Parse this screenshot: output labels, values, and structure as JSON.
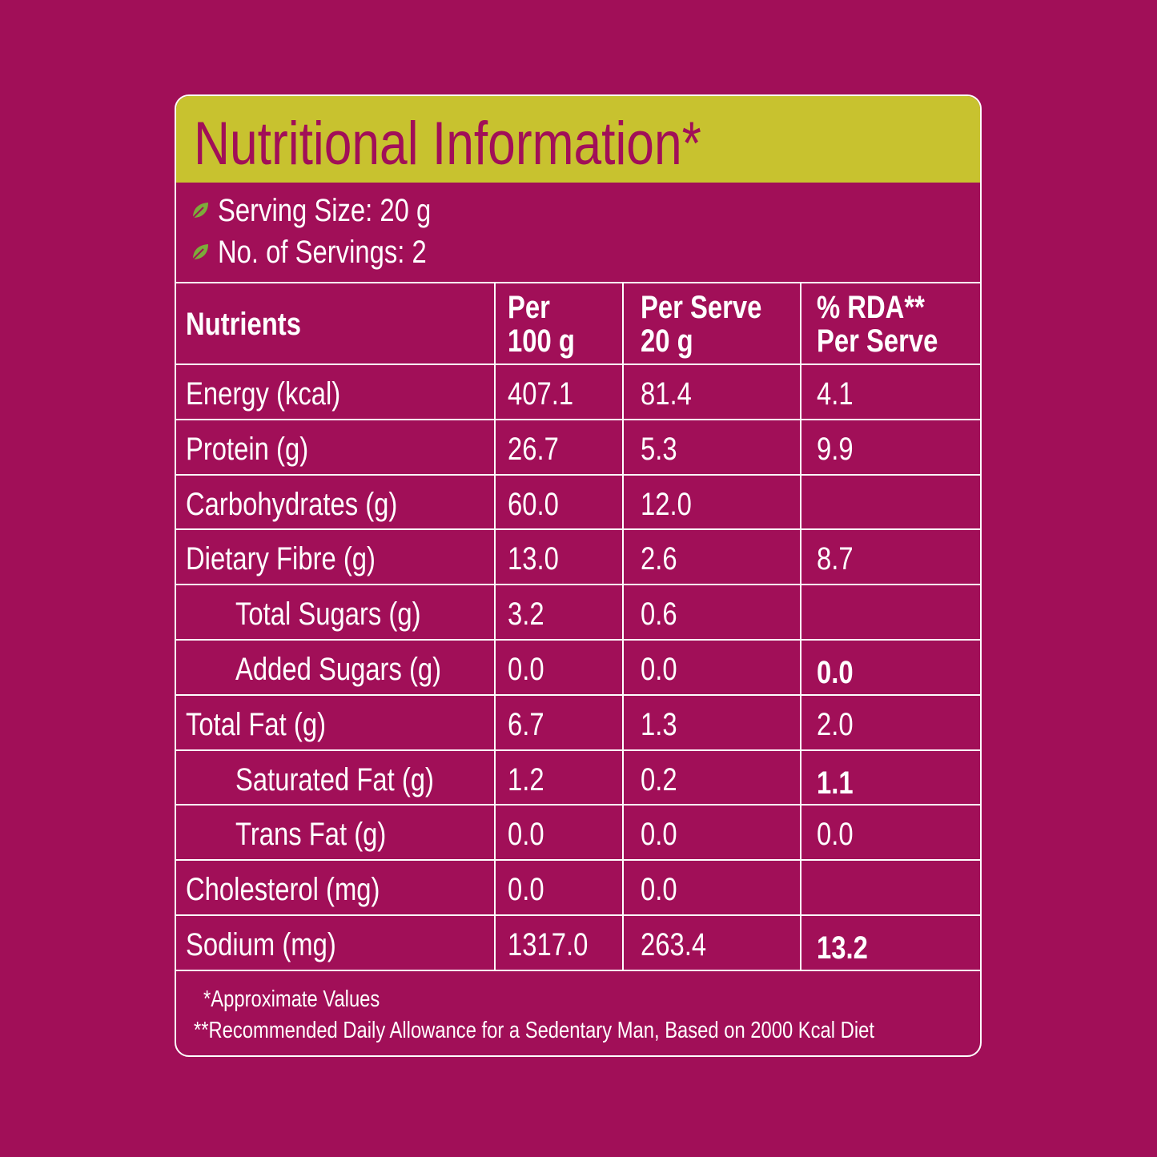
{
  "title": "Nutritional Information*",
  "serving": [
    "Serving Size: 20 g",
    "No. of Servings: 2"
  ],
  "table": {
    "header": [
      [
        "Nutrients"
      ],
      [
        "Per",
        "100 g"
      ],
      [
        "Per Serve",
        "20 g"
      ],
      [
        "% RDA**",
        "Per Serve"
      ]
    ],
    "rows": [
      {
        "cells": [
          "Energy (kcal)",
          "407.1",
          "81.4",
          "4.1"
        ],
        "indent": false,
        "bold": false
      },
      {
        "cells": [
          "Protein (g)",
          "26.7",
          "5.3",
          "9.9"
        ],
        "indent": false,
        "bold": false
      },
      {
        "cells": [
          "Carbohydrates (g)",
          "60.0",
          "12.0",
          null
        ],
        "indent": false,
        "bold": false
      },
      {
        "cells": [
          "Dietary Fibre (g)",
          "13.0",
          "2.6",
          "8.7"
        ],
        "indent": false,
        "bold": false
      },
      {
        "cells": [
          "Total Sugars (g)",
          "3.2",
          "0.6",
          null
        ],
        "indent": true,
        "bold": false
      },
      {
        "cells": [
          "Added Sugars (g)",
          "0.0",
          "0.0",
          "0.0"
        ],
        "indent": true,
        "bold": true
      },
      {
        "cells": [
          "Total Fat (g)",
          "6.7",
          "1.3",
          "2.0"
        ],
        "indent": false,
        "bold": false
      },
      {
        "cells": [
          "Saturated Fat (g)",
          "1.2",
          "0.2",
          "1.1"
        ],
        "indent": true,
        "bold": true
      },
      {
        "cells": [
          "Trans Fat (g)",
          "0.0",
          "0.0",
          "0.0"
        ],
        "indent": true,
        "bold": false
      },
      {
        "cells": [
          "Cholesterol (mg)",
          "0.0",
          "0.0",
          null
        ],
        "indent": false,
        "bold": false
      },
      {
        "cells": [
          "Sodium (mg)",
          "1317.0",
          "263.4",
          "13.2"
        ],
        "indent": false,
        "bold": true
      }
    ]
  },
  "footnotes": [
    "*Approximate Values",
    "**Recommended Daily Allowance for a Sedentary Man, Based on 2000 Kcal Diet"
  ]
}
